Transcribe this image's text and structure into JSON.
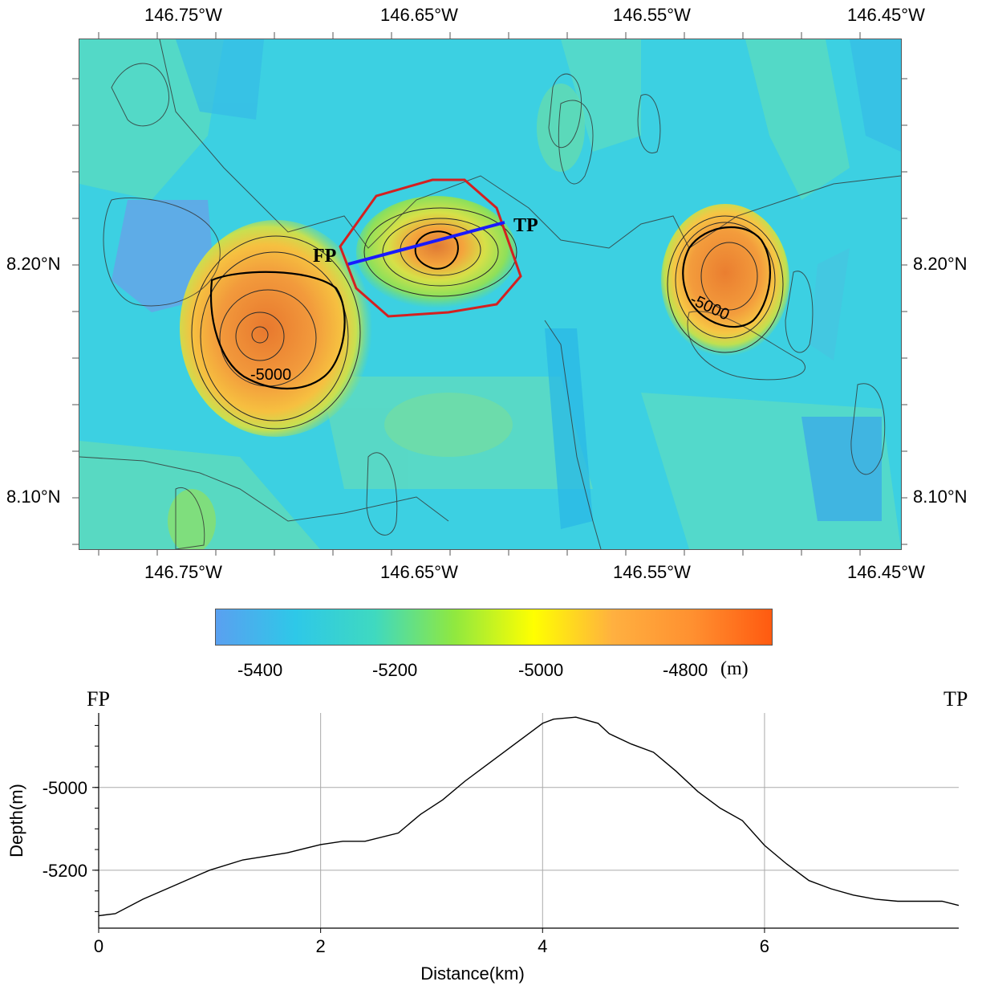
{
  "map": {
    "lon_labels": [
      "146.75°W",
      "146.65°W",
      "146.55°W",
      "146.45°W"
    ],
    "lat_labels": [
      "8.20°N",
      "8.10°N"
    ],
    "point_labels": {
      "start": "FP",
      "end": "TP"
    },
    "contour_labels": [
      "-5000",
      "-5000"
    ],
    "colors": {
      "profile_line": "#1a1aff",
      "study_area": "#d42020",
      "contour": "#333333"
    }
  },
  "colorbar": {
    "ticks": [
      "-5400",
      "-5200",
      "-5000",
      "-4800"
    ],
    "unit": "(m)",
    "colors": [
      "#5aa0f0",
      "#2ec8e8",
      "#3fd9c0",
      "#8fe840",
      "#ffff00",
      "#ffb040",
      "#ff9030",
      "#ff5a10"
    ]
  },
  "profile": {
    "left_label": "FP",
    "right_label": "TP",
    "xlabel": "Distance(km)",
    "ylabel": "Depth(m)"
  },
  "chart_data": {
    "type": "line",
    "xlabel": "Distance(km)",
    "ylabel": "Depth(m)",
    "xlim": [
      0,
      7.75
    ],
    "ylim": [
      -5340,
      -4820
    ],
    "xticks": [
      0,
      2,
      4,
      6
    ],
    "yticks": [
      -5000,
      -5200
    ],
    "grid": true,
    "x": [
      0,
      0.15,
      0.4,
      0.7,
      1.0,
      1.3,
      1.7,
      2.0,
      2.2,
      2.4,
      2.7,
      2.9,
      3.1,
      3.3,
      3.5,
      3.7,
      3.9,
      4.0,
      4.1,
      4.3,
      4.5,
      4.6,
      4.8,
      5.0,
      5.2,
      5.4,
      5.6,
      5.8,
      6.0,
      6.2,
      6.4,
      6.6,
      6.8,
      7.0,
      7.2,
      7.4,
      7.6,
      7.75
    ],
    "y": [
      -5310,
      -5305,
      -5270,
      -5235,
      -5200,
      -5175,
      -5158,
      -5138,
      -5130,
      -5130,
      -5110,
      -5065,
      -5030,
      -4985,
      -4945,
      -4905,
      -4865,
      -4845,
      -4835,
      -4830,
      -4845,
      -4870,
      -4895,
      -4915,
      -4960,
      -5010,
      -5050,
      -5080,
      -5140,
      -5185,
      -5225,
      -5245,
      -5260,
      -5270,
      -5275,
      -5275,
      -5275,
      -5285
    ]
  }
}
